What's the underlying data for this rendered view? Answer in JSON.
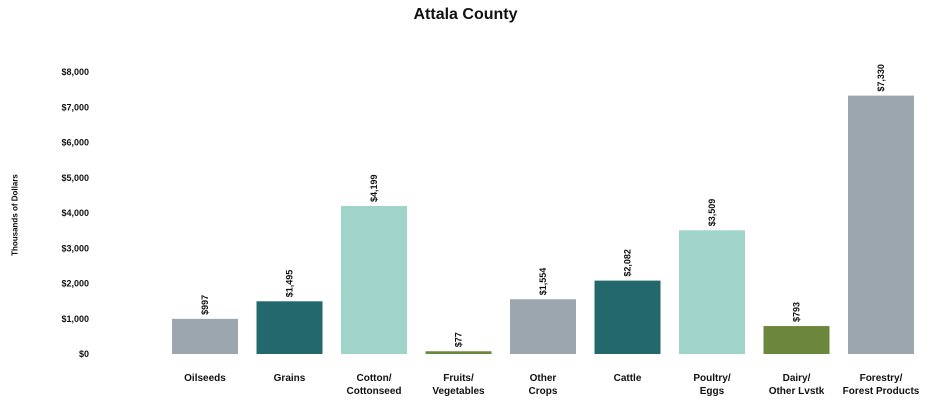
{
  "chart_data": {
    "type": "bar",
    "title": "Attala County",
    "ylabel": "Thousands of Dollars",
    "ylim": [
      0,
      8000
    ],
    "yticks": [
      0,
      1000,
      2000,
      3000,
      4000,
      5000,
      6000,
      7000,
      8000
    ],
    "ytick_labels": [
      "$0",
      "$1,000",
      "$2,000",
      "$3,000",
      "$4,000",
      "$5,000",
      "$6,000",
      "$7,000",
      "$8,000"
    ],
    "categories": [
      [
        "Oilseeds"
      ],
      [
        "Grains"
      ],
      [
        "Cotton/",
        "Cottonseed"
      ],
      [
        "Fruits/",
        "Vegetables"
      ],
      [
        "Other",
        "Crops"
      ],
      [
        "Cattle"
      ],
      [
        "Poultry/",
        "Eggs"
      ],
      [
        "Dairy/",
        "Other Lvstk"
      ],
      [
        "Forestry/",
        "Forest Products"
      ]
    ],
    "values": [
      997,
      1495,
      4199,
      77,
      1554,
      2082,
      3509,
      793,
      7330
    ],
    "data_labels": [
      "$997",
      "$1,495",
      "$4,199",
      "$77",
      "$1,554",
      "$2,082",
      "$3,509",
      "$793",
      "$7,330"
    ],
    "colors": [
      "#9ba6ae",
      "#23686d",
      "#a0d4cb",
      "#6a873b",
      "#9ba6ae",
      "#23686d",
      "#a0d4cb",
      "#6a873b",
      "#9ba6ae"
    ],
    "grid": false,
    "legend": "none"
  }
}
